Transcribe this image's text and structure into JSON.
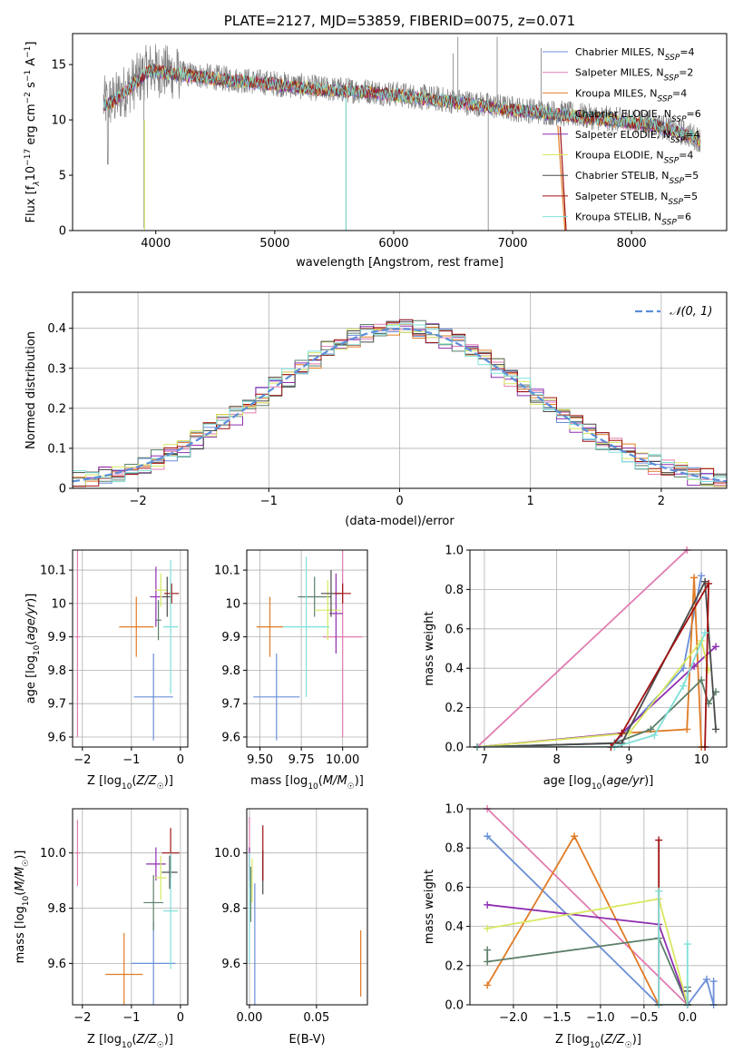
{
  "colors": {
    "chabrier_miles": "#6a8fd8",
    "salpeter_miles": "#e07cb0",
    "kroupa_miles": "#e07b25",
    "chabrier_elodie": "#5c7f6a",
    "salpeter_elodie": "#8e2fb0",
    "kroupa_elodie": "#d8e860",
    "chabrier_stelib": "#4a4a4a",
    "salpeter_stelib": "#a01010",
    "kroupa_stelib": "#7fe0d8",
    "spectrum": "#808080",
    "gaussian": "#5b8ed8"
  },
  "legend_spectrum": [
    {
      "base": "Chabrier MILES, N",
      "sub": "SSP",
      "tail": "=4",
      "color_key": "chabrier_miles"
    },
    {
      "base": "Salpeter MILES, N",
      "sub": "SSP",
      "tail": "=2",
      "color_key": "salpeter_miles"
    },
    {
      "base": "Kroupa MILES, N",
      "sub": "SSP",
      "tail": "=4",
      "color_key": "kroupa_miles"
    },
    {
      "base": "Chabrier ELODIE, N",
      "sub": "SSP",
      "tail": "=6",
      "color_key": "chabrier_elodie"
    },
    {
      "base": "Salpeter ELODIE, N",
      "sub": "SSP",
      "tail": "=4",
      "color_key": "salpeter_elodie"
    },
    {
      "base": "Kroupa ELODIE, N",
      "sub": "SSP",
      "tail": "=4",
      "color_key": "kroupa_elodie"
    },
    {
      "base": "Chabrier STELIB, N",
      "sub": "SSP",
      "tail": "=5",
      "color_key": "chabrier_stelib"
    },
    {
      "base": "Salpeter STELIB, N",
      "sub": "SSP",
      "tail": "=5",
      "color_key": "salpeter_stelib"
    },
    {
      "base": "Kroupa STELIB, N",
      "sub": "SSP",
      "tail": "=6",
      "color_key": "kroupa_stelib"
    }
  ],
  "chart_data": [
    {
      "type": "line",
      "title": "PLATE=2127, MJD=53859, FIBERID=0075, z=0.071",
      "xlabel": "wavelength [Angstrom, rest frame]",
      "ylabel": {
        "pre": "Flux [f",
        "lam": "λ",
        "mid": "10",
        "exp1": "−17",
        "post": " erg cm",
        "exp2": "−2",
        "post2": " s",
        "exp3": "−1",
        "post3": " A",
        "exp4": "−1",
        "end": "]"
      },
      "xlim": [
        3300,
        8800
      ],
      "ylim": [
        0,
        17.8
      ],
      "xticks": [
        4000,
        5000,
        6000,
        7000,
        8000
      ],
      "yticks": [
        0,
        5,
        10,
        15
      ],
      "grid": false,
      "legend": "upper right",
      "continuum": [
        [
          3560,
          11.5
        ],
        [
          3650,
          11.8
        ],
        [
          3800,
          13.2
        ],
        [
          3950,
          14.6
        ],
        [
          4100,
          14.3
        ],
        [
          4300,
          14.1
        ],
        [
          4600,
          13.7
        ],
        [
          5000,
          13.3
        ],
        [
          5400,
          12.8
        ],
        [
          5800,
          12.6
        ],
        [
          6200,
          12.1
        ],
        [
          6600,
          11.6
        ],
        [
          7000,
          11.0
        ],
        [
          7400,
          10.6
        ],
        [
          7800,
          10.1
        ],
        [
          8200,
          9.6
        ],
        [
          8500,
          8.6
        ],
        [
          8580,
          8.2
        ]
      ]
    },
    {
      "type": "histogram",
      "xlabel": "(data-model)/error",
      "ylabel": "Normed distribution",
      "xlim": [
        -2.5,
        2.5
      ],
      "ylim": [
        0,
        0.49
      ],
      "xticks": [
        -2,
        -1,
        0,
        1,
        2
      ],
      "yticks": [
        0,
        0.1,
        0.2,
        0.3,
        0.4
      ],
      "grid": true,
      "legend": "upper right",
      "gaussian_label": "𝒩(0, 1)",
      "bin_width": 0.1
    },
    {
      "type": "scatter",
      "xlabel": {
        "pre": "Z [log",
        "sub": "10",
        "post": "(Z/Z",
        "sun": "☉",
        "end": ")]"
      },
      "ylabel": {
        "pre": "age  [log",
        "sub": "10",
        "post": "(age/yr)]"
      },
      "xlim": [
        -2.2,
        0.15
      ],
      "ylim": [
        9.57,
        10.16
      ],
      "xticks": [
        -2,
        -1,
        0
      ],
      "yticks": [
        9.6,
        9.7,
        9.8,
        9.9,
        10.0,
        10.1
      ],
      "points": [
        {
          "c": "chabrier_miles",
          "x": -0.55,
          "y": 9.72,
          "xe": 0.4,
          "ye": 0.13
        },
        {
          "c": "salpeter_miles",
          "x": -2.1,
          "y": 9.9,
          "xe": 0.05,
          "ye": 0.3
        },
        {
          "c": "kroupa_miles",
          "x": -0.9,
          "y": 9.93,
          "xe": 0.35,
          "ye": 0.09
        },
        {
          "c": "chabrier_elodie",
          "x": -0.45,
          "y": 9.95,
          "xe": 0.06,
          "ye": 0.06
        },
        {
          "c": "salpeter_elodie",
          "x": -0.5,
          "y": 10.02,
          "xe": 0.12,
          "ye": 0.09
        },
        {
          "c": "kroupa_elodie",
          "x": -0.4,
          "y": 10.04,
          "xe": 0.12,
          "ye": 0.05
        },
        {
          "c": "chabrier_stelib",
          "x": -0.27,
          "y": 10.02,
          "xe": 0.1,
          "ye": 0.06
        },
        {
          "c": "salpeter_stelib",
          "x": -0.18,
          "y": 10.03,
          "xe": 0.15,
          "ye": 0.03
        },
        {
          "c": "kroupa_stelib",
          "x": -0.2,
          "y": 9.93,
          "xe": 0.15,
          "ye": 0.2
        }
      ]
    },
    {
      "type": "scatter",
      "xlabel": {
        "pre": "mass [log",
        "sub": "10",
        "post": "(M/M",
        "sun": "☉",
        "end": ")]"
      },
      "xlim": [
        9.42,
        10.15
      ],
      "ylim": [
        9.57,
        10.16
      ],
      "xticks": [
        9.5,
        9.75,
        10.0
      ],
      "xticklabels": [
        "9.50",
        "9.75",
        "10.00"
      ],
      "yticks": [
        9.6,
        9.7,
        9.8,
        9.9,
        10.0,
        10.1
      ],
      "points": [
        {
          "c": "chabrier_miles",
          "x": 9.6,
          "y": 9.72,
          "xe": 0.14,
          "ye": 0.13
        },
        {
          "c": "salpeter_miles",
          "x": 10.0,
          "y": 9.9,
          "xe": 0.12,
          "ye": 0.3
        },
        {
          "c": "kroupa_miles",
          "x": 9.56,
          "y": 9.93,
          "xe": 0.08,
          "ye": 0.09
        },
        {
          "c": "chabrier_elodie",
          "x": 9.83,
          "y": 10.02,
          "xe": 0.1,
          "ye": 0.06
        },
        {
          "c": "salpeter_elodie",
          "x": 9.96,
          "y": 9.97,
          "xe": 0.04,
          "ye": 0.12
        },
        {
          "c": "kroupa_elodie",
          "x": 9.91,
          "y": 9.98,
          "xe": 0.08,
          "ye": 0.09
        },
        {
          "c": "chabrier_stelib",
          "x": 9.93,
          "y": 10.03,
          "xe": 0.06,
          "ye": 0.07
        },
        {
          "c": "salpeter_stelib",
          "x": 10.0,
          "y": 10.03,
          "xe": 0.05,
          "ye": 0.03
        },
        {
          "c": "kroupa_stelib",
          "x": 9.78,
          "y": 9.93,
          "xe": 0.14,
          "ye": 0.21
        }
      ]
    },
    {
      "type": "line",
      "xlabel": {
        "pre": "age  [log",
        "sub": "10",
        "post": "(age/yr)]"
      },
      "ylabel": "mass weight",
      "xlim": [
        6.8,
        10.35
      ],
      "ylim": [
        0,
        1.0
      ],
      "xticks": [
        7,
        8,
        9,
        10
      ],
      "yticks": [
        0,
        0.2,
        0.4,
        0.6,
        0.8,
        1.0
      ],
      "yticklabels": [
        "0.0",
        "0.2",
        "0.4",
        "0.6",
        "0.8",
        "1.0"
      ],
      "grid": true,
      "series": [
        {
          "c": "chabrier_miles",
          "x": [
            6.9,
            8.8,
            9.75,
            10.0
          ],
          "y": [
            0.0,
            0.02,
            0.4,
            0.87
          ]
        },
        {
          "c": "salpeter_miles",
          "x": [
            6.9,
            9.8
          ],
          "y": [
            0.0,
            1.0
          ]
        },
        {
          "c": "kroupa_miles",
          "x": [
            6.9,
            8.9,
            9.8,
            9.9,
            10.0
          ],
          "y": [
            0.0,
            0.07,
            0.09,
            0.86,
            0.0
          ]
        },
        {
          "c": "chabrier_elodie",
          "x": [
            6.9,
            8.8,
            9.3,
            10.0,
            10.1,
            10.2
          ],
          "y": [
            0.0,
            0.02,
            0.09,
            0.34,
            0.22,
            0.28
          ]
        },
        {
          "c": "salpeter_elodie",
          "x": [
            6.9,
            8.9,
            9.9,
            10.2
          ],
          "y": [
            0.0,
            0.07,
            0.41,
            0.51
          ]
        },
        {
          "c": "kroupa_elodie",
          "x": [
            6.9,
            9.0,
            10.0,
            10.1
          ],
          "y": [
            0.0,
            0.07,
            0.54,
            0.39
          ]
        },
        {
          "c": "chabrier_stelib",
          "x": [
            6.9,
            8.9,
            10.05,
            10.2
          ],
          "y": [
            0.0,
            0.02,
            0.84,
            0.09
          ]
        },
        {
          "c": "salpeter_stelib",
          "x": [
            6.9,
            8.75,
            8.9,
            10.1,
            10.05
          ],
          "y": [
            0.0,
            0.0,
            0.07,
            0.83,
            0.0
          ]
        },
        {
          "c": "kroupa_stelib",
          "x": [
            6.9,
            8.8,
            9.35,
            9.75,
            10.05
          ],
          "y": [
            0.0,
            0.0,
            0.06,
            0.31,
            0.58
          ]
        }
      ]
    },
    {
      "type": "scatter",
      "xlabel": {
        "pre": "Z [log",
        "sub": "10",
        "post": "(Z/Z",
        "sun": "☉",
        "end": ")]"
      },
      "ylabel": {
        "pre": "mass [log",
        "sub": "10",
        "post": "(M/M",
        "sun": "☉",
        "end": ")]"
      },
      "xlim": [
        -2.2,
        0.15
      ],
      "ylim": [
        9.45,
        10.16
      ],
      "xticks": [
        -2,
        -1,
        0
      ],
      "yticks": [
        9.6,
        9.8,
        10.0
      ],
      "yticklabels": [
        "9.6",
        "9.8",
        "10.0"
      ],
      "points": [
        {
          "c": "chabrier_miles",
          "x": -0.55,
          "y": 9.6,
          "xe": 0.45,
          "ye": 0.15
        },
        {
          "c": "salpeter_miles",
          "x": -2.1,
          "y": 10.0,
          "xe": 0.05,
          "ye": 0.12
        },
        {
          "c": "kroupa_miles",
          "x": -1.15,
          "y": 9.56,
          "xe": 0.38,
          "ye": 0.15
        },
        {
          "c": "chabrier_elodie",
          "x": -0.55,
          "y": 9.82,
          "xe": 0.2,
          "ye": 0.1
        },
        {
          "c": "salpeter_elodie",
          "x": -0.5,
          "y": 9.96,
          "xe": 0.2,
          "ye": 0.06
        },
        {
          "c": "kroupa_elodie",
          "x": -0.4,
          "y": 9.91,
          "xe": 0.12,
          "ye": 0.08
        },
        {
          "c": "chabrier_stelib",
          "x": -0.22,
          "y": 9.93,
          "xe": 0.16,
          "ye": 0.06
        },
        {
          "c": "salpeter_stelib",
          "x": -0.2,
          "y": 10.0,
          "xe": 0.18,
          "ye": 0.09
        },
        {
          "c": "kroupa_stelib",
          "x": -0.2,
          "y": 9.79,
          "xe": 0.15,
          "ye": 0.21
        }
      ]
    },
    {
      "type": "scatter",
      "xlabel": "E(B-V)",
      "xlim": [
        -0.002,
        0.088
      ],
      "ylim": [
        9.45,
        10.16
      ],
      "xticks": [
        0.0,
        0.05
      ],
      "xticklabels": [
        "0.00",
        "0.05"
      ],
      "yticks": [
        9.6,
        9.8,
        10.0
      ],
      "yticklabels": [
        "9.6",
        "9.8",
        "10.0"
      ],
      "points": [
        {
          "c": "chabrier_miles",
          "x": 0.004,
          "y": 9.66,
          "xe": 0,
          "ye": 0.23
        },
        {
          "c": "salpeter_miles",
          "x": 0.0,
          "y": 10.0,
          "xe": 0,
          "ye": 0.13
        },
        {
          "c": "kroupa_miles",
          "x": 0.083,
          "y": 9.6,
          "xe": 0,
          "ye": 0.12
        },
        {
          "c": "chabrier_elodie",
          "x": 0.001,
          "y": 9.85,
          "xe": 0,
          "ye": 0.1
        },
        {
          "c": "salpeter_elodie",
          "x": 0.0,
          "y": 9.96,
          "xe": 0,
          "ye": 0.06
        },
        {
          "c": "kroupa_elodie",
          "x": 0.002,
          "y": 9.9,
          "xe": 0,
          "ye": 0.08
        },
        {
          "c": "chabrier_stelib",
          "x": 0.01,
          "y": 9.93,
          "xe": 0,
          "ye": 0.08
        },
        {
          "c": "salpeter_stelib",
          "x": 0.01,
          "y": 10.0,
          "xe": 0,
          "ye": 0.1
        },
        {
          "c": "kroupa_stelib",
          "x": 0.0,
          "y": 9.8,
          "xe": 0,
          "ye": 0.2
        }
      ]
    },
    {
      "type": "line",
      "xlabel": {
        "pre": "Z [log",
        "sub": "10",
        "post": "(Z/Z",
        "sun": "☉",
        "end": ")]"
      },
      "ylabel": "mass weight",
      "xlim": [
        -2.5,
        0.45
      ],
      "ylim": [
        0,
        1.0
      ],
      "xticks": [
        -2.0,
        -1.5,
        -1.0,
        -0.5,
        0.0
      ],
      "xticklabels": [
        "−2.0",
        "−1.5",
        "−1.0",
        "−0.5",
        "0.0"
      ],
      "yticks": [
        0,
        0.2,
        0.4,
        0.6,
        0.8,
        1.0
      ],
      "yticklabels": [
        "0.0",
        "0.2",
        "0.4",
        "0.6",
        "0.8",
        "1.0"
      ],
      "grid": true,
      "series": [
        {
          "c": "chabrier_miles",
          "x": [
            -2.3,
            -0.33,
            0.0,
            0.22,
            0.3,
            0.3
          ],
          "y": [
            0.86,
            0.0,
            0.0,
            0.13,
            0.0,
            0.12
          ]
        },
        {
          "c": "salpeter_miles",
          "x": [
            -2.3,
            0.0
          ],
          "y": [
            1.0,
            0.0
          ]
        },
        {
          "c": "kroupa_miles",
          "x": [
            -2.3,
            -1.3,
            -0.33,
            0.0
          ],
          "y": [
            0.1,
            0.86,
            0.0,
            0.0
          ]
        },
        {
          "c": "chabrier_elodie",
          "x": [
            -2.3,
            -2.3,
            -0.33,
            0.0,
            0.0
          ],
          "y": [
            0.28,
            0.22,
            0.34,
            0.0,
            0.09
          ]
        },
        {
          "c": "salpeter_elodie",
          "x": [
            -2.3,
            -0.33,
            0.0
          ],
          "y": [
            0.51,
            0.41,
            0.0
          ]
        },
        {
          "c": "kroupa_elodie",
          "x": [
            -2.3,
            -0.33,
            0.0
          ],
          "y": [
            0.39,
            0.54,
            0.0
          ]
        },
        {
          "c": "chabrier_stelib",
          "x": [
            -0.33,
            0.0,
            0.0
          ],
          "y": [
            0.0,
            0.0,
            0.07
          ]
        },
        {
          "c": "salpeter_stelib",
          "x": [
            -0.33,
            -0.33,
            0.0
          ],
          "y": [
            0.84,
            0.0,
            0.0
          ]
        },
        {
          "c": "kroupa_stelib",
          "x": [
            -0.33,
            -0.33,
            0.0,
            0.0
          ],
          "y": [
            0.58,
            0.0,
            0.0,
            0.31
          ]
        }
      ]
    }
  ]
}
